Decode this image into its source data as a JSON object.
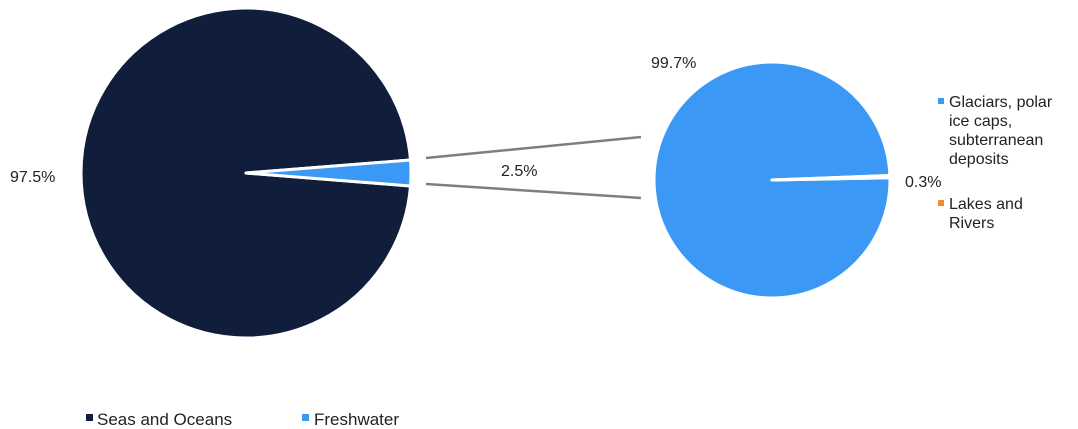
{
  "chart_data": [
    {
      "type": "pie",
      "slices": [
        {
          "name": "Seas and Oceans",
          "value": 97.5,
          "label": "97.5%",
          "color": "#101e3c"
        },
        {
          "name": "Freshwater",
          "value": 2.5,
          "label": "2.5%",
          "color": "#3b99f5"
        }
      ],
      "legend": {
        "placement": "bottom-left"
      }
    },
    {
      "type": "pie",
      "slices": [
        {
          "name": "Glaciars, polar ice caps, subterranean deposits",
          "value": 99.7,
          "label": "99.7%",
          "color": "#3b99f5"
        },
        {
          "name": "Lakes and Rivers",
          "value": 0.3,
          "label": "0.3%",
          "color": "#f08c2a"
        }
      ],
      "legend": {
        "placement": "right"
      }
    }
  ],
  "legend_main": [
    {
      "label": "Seas and Oceans",
      "color": "#101e3c"
    },
    {
      "label": "Freshwater",
      "color": "#3b99f5"
    }
  ],
  "legend_secondary": [
    {
      "lines": [
        "Glaciars, polar",
        "ice caps,",
        "subterranean",
        "deposits"
      ],
      "color": "#3b99f5"
    },
    {
      "lines": [
        "Lakes and",
        "Rivers"
      ],
      "color": "#f08c2a"
    }
  ],
  "connector_color": "#7f7f7f"
}
